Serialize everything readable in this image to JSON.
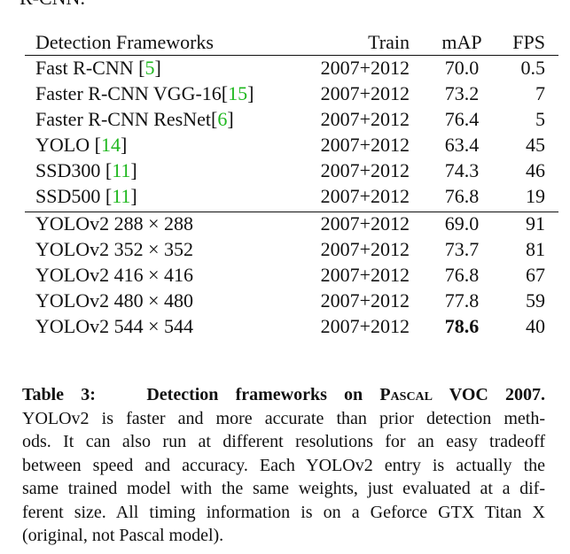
{
  "fragment": "R-CNN.",
  "table": {
    "header": [
      "Detection Frameworks",
      "Train",
      "mAP",
      "FPS"
    ],
    "groups": [
      [
        {
          "name": [
            "Fast R-CNN [",
            "5",
            "]"
          ],
          "train": "2007+2012",
          "map": "70.0",
          "fps": "0.5"
        },
        {
          "name": [
            "Faster R-CNN VGG-16[",
            "15",
            "]"
          ],
          "train": "2007+2012",
          "map": "73.2",
          "fps": "7"
        },
        {
          "name": [
            "Faster R-CNN ResNet[",
            "6",
            "]"
          ],
          "train": "2007+2012",
          "map": "76.4",
          "fps": "5"
        },
        {
          "name": [
            "YOLO [",
            "14",
            "]"
          ],
          "train": "2007+2012",
          "map": "63.4",
          "fps": "45"
        },
        {
          "name": [
            "SSD300 [",
            "11",
            "]"
          ],
          "train": "2007+2012",
          "map": "74.3",
          "fps": "46"
        },
        {
          "name": [
            "SSD500 [",
            "11",
            "]"
          ],
          "train": "2007+2012",
          "map": "76.8",
          "fps": "19"
        }
      ],
      [
        {
          "name": [
            "YOLOv2 288 × 288"
          ],
          "train": "2007+2012",
          "map": "69.0",
          "fps": "91"
        },
        {
          "name": [
            "YOLOv2 352 × 352"
          ],
          "train": "2007+2012",
          "map": "73.7",
          "fps": "81"
        },
        {
          "name": [
            "YOLOv2 416 × 416"
          ],
          "train": "2007+2012",
          "map": "76.8",
          "fps": "67"
        },
        {
          "name": [
            "YOLOv2 480 × 480"
          ],
          "train": "2007+2012",
          "map": "77.8",
          "fps": "59"
        },
        {
          "name": [
            "YOLOv2 544 × 544"
          ],
          "train": "2007+2012",
          "map": "78.6",
          "fps": "40",
          "best": true
        }
      ]
    ]
  },
  "caption": {
    "label": "Table 3:",
    "title": [
      "Detection frameworks on",
      "Pascal",
      "VOC 2007."
    ],
    "lines": [
      "YOLOv2 is faster and more accurate than prior detection meth-",
      "ods. It can also run at different resolutions for an easy tradeoff",
      "between speed and accuracy. Each YOLOv2 entry is actually the",
      "same trained model with the same weights, just evaluated at a dif-",
      "ferent size. All timing information is on a Geforce GTX Titan X",
      "(original, not Pascal model)."
    ]
  }
}
